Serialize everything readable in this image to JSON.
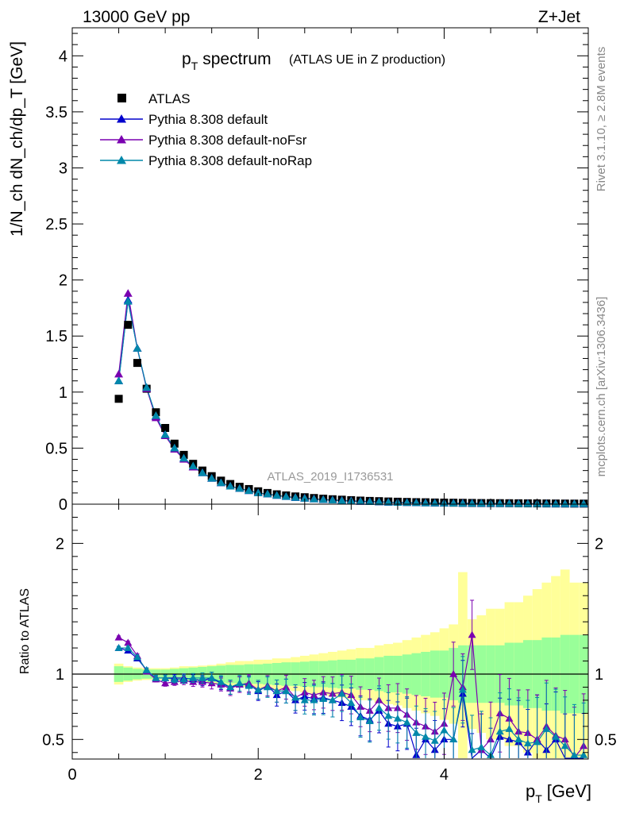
{
  "header": {
    "beam": "13000 GeV pp",
    "process": "Z+Jet"
  },
  "side_labels": {
    "rivet": "Rivet 3.1.10, ≥ 2.8M events",
    "mcplots": "mcplots.cern.ch [arXiv:1306.3436]"
  },
  "analysis_id": "ATLAS_2019_I1736531",
  "colors": {
    "atlas": "#000000",
    "default": "#0000cc",
    "noFsr": "#7a00b0",
    "noRap": "#0088aa",
    "band_inner": "#99ff99",
    "band_outer": "#ffff99"
  },
  "chart_data": [
    {
      "type": "scatter",
      "title_main": "p",
      "title_sub": "T",
      "title_rest": "spectrum",
      "title_note": "(ATLAS UE in Z production)",
      "ylabel": "1/N_ch dN_ch/dp_T [GeV]",
      "xlim": [
        0,
        5.55
      ],
      "ylim": [
        0,
        4.25
      ],
      "yticks": [
        0,
        0.5,
        1,
        1.5,
        2,
        2.5,
        3,
        3.5,
        4
      ],
      "ytick_labels": [
        "0",
        "0.5",
        "1",
        "1.5",
        "2",
        "2.5",
        "3",
        "3.5",
        "4"
      ],
      "legend_placement": "top-left",
      "x": [
        0.5,
        0.6,
        0.7,
        0.8,
        0.9,
        1.0,
        1.1,
        1.2,
        1.3,
        1.4,
        1.5,
        1.6,
        1.7,
        1.8,
        1.9,
        2.0,
        2.1,
        2.2,
        2.3,
        2.4,
        2.5,
        2.6,
        2.7,
        2.8,
        2.9,
        3.0,
        3.1,
        3.2,
        3.3,
        3.4,
        3.5,
        3.6,
        3.7,
        3.8,
        3.9,
        4.0,
        4.1,
        4.2,
        4.3,
        4.4,
        4.5,
        4.6,
        4.7,
        4.8,
        4.9,
        5.0,
        5.1,
        5.2,
        5.3,
        5.4,
        5.5
      ],
      "series": [
        {
          "name": "ATLAS",
          "marker": "square",
          "values": [
            0.94,
            1.6,
            1.26,
            1.03,
            0.82,
            0.68,
            0.54,
            0.44,
            0.36,
            0.3,
            0.25,
            0.21,
            0.18,
            0.155,
            0.135,
            0.115,
            0.1,
            0.088,
            0.078,
            0.069,
            0.062,
            0.055,
            0.049,
            0.044,
            0.04,
            0.036,
            0.032,
            0.029,
            0.027,
            0.024,
            0.022,
            0.02,
            0.018,
            0.017,
            0.015,
            0.014,
            0.013,
            0.012,
            0.011,
            0.01,
            0.0095,
            0.009,
            0.0085,
            0.008,
            0.0075,
            0.007,
            0.0065,
            0.006,
            0.0055,
            0.005,
            0.005
          ]
        },
        {
          "name": "Pythia 8.308 default",
          "marker": "triangle",
          "values": [
            1.1,
            1.82,
            1.39,
            1.04,
            0.78,
            0.62,
            0.5,
            0.41,
            0.33,
            0.28,
            0.23,
            0.19,
            0.16,
            0.14,
            0.12,
            0.1,
            0.09,
            0.078,
            0.067,
            0.058,
            0.052,
            0.046,
            0.04,
            0.036,
            0.032,
            0.028,
            0.024,
            0.022,
            0.02,
            0.017,
            0.015,
            0.014,
            0.012,
            0.011,
            0.01,
            0.009,
            0.008,
            0.0075,
            0.007,
            0.0065,
            0.006,
            0.0055,
            0.005,
            0.0045,
            0.004,
            0.004,
            0.0035,
            0.003,
            0.003,
            0.003,
            0.003
          ]
        },
        {
          "name": "Pythia 8.308 default-noFsr",
          "marker": "triangle",
          "values": [
            1.16,
            1.88,
            1.39,
            1.03,
            0.77,
            0.61,
            0.49,
            0.4,
            0.33,
            0.28,
            0.23,
            0.19,
            0.16,
            0.14,
            0.12,
            0.1,
            0.09,
            0.078,
            0.068,
            0.06,
            0.054,
            0.048,
            0.042,
            0.038,
            0.034,
            0.03,
            0.027,
            0.024,
            0.021,
            0.018,
            0.016,
            0.015,
            0.013,
            0.012,
            0.011,
            0.01,
            0.009,
            0.0085,
            0.008,
            0.0075,
            0.007,
            0.0065,
            0.006,
            0.0055,
            0.005,
            0.0045,
            0.004,
            0.0035,
            0.0035,
            0.003,
            0.003
          ]
        },
        {
          "name": "Pythia 8.308 default-noRap",
          "marker": "triangle",
          "values": [
            1.1,
            1.81,
            1.39,
            1.04,
            0.79,
            0.62,
            0.5,
            0.41,
            0.34,
            0.28,
            0.23,
            0.19,
            0.16,
            0.14,
            0.12,
            0.1,
            0.09,
            0.078,
            0.068,
            0.059,
            0.052,
            0.046,
            0.041,
            0.036,
            0.032,
            0.028,
            0.025,
            0.022,
            0.02,
            0.017,
            0.015,
            0.014,
            0.012,
            0.011,
            0.01,
            0.009,
            0.008,
            0.0075,
            0.007,
            0.0065,
            0.006,
            0.0055,
            0.005,
            0.0045,
            0.004,
            0.004,
            0.0035,
            0.003,
            0.003,
            0.003,
            0.003
          ]
        }
      ]
    },
    {
      "type": "line",
      "ylabel": "Ratio to ATLAS",
      "xlabel_main": "p",
      "xlabel_sub": "T",
      "xlabel_rest": "[GeV]",
      "xlim": [
        0,
        5.55
      ],
      "ylim": [
        0.35,
        2.3
      ],
      "xticks": [
        0,
        2,
        4
      ],
      "xtick_labels": [
        "0",
        "2",
        "4"
      ],
      "yticks": [
        0.5,
        1,
        2
      ],
      "ytick_labels": [
        "0.5",
        "1",
        "2"
      ],
      "reference_line": 1,
      "x": [
        0.5,
        0.6,
        0.7,
        0.8,
        0.9,
        1.0,
        1.1,
        1.2,
        1.3,
        1.4,
        1.5,
        1.6,
        1.7,
        1.8,
        1.9,
        2.0,
        2.1,
        2.2,
        2.3,
        2.4,
        2.5,
        2.6,
        2.7,
        2.8,
        2.9,
        3.0,
        3.1,
        3.2,
        3.3,
        3.4,
        3.5,
        3.6,
        3.7,
        3.8,
        3.9,
        4.0,
        4.1,
        4.2,
        4.3,
        4.4,
        4.5,
        4.6,
        4.7,
        4.8,
        4.9,
        5.0,
        5.1,
        5.2,
        5.3,
        5.4,
        5.5
      ],
      "band_inner": [
        0.06,
        0.05,
        0.04,
        0.035,
        0.035,
        0.035,
        0.04,
        0.045,
        0.05,
        0.055,
        0.06,
        0.065,
        0.07,
        0.07,
        0.075,
        0.075,
        0.08,
        0.085,
        0.09,
        0.09,
        0.095,
        0.1,
        0.1,
        0.105,
        0.11,
        0.11,
        0.12,
        0.12,
        0.13,
        0.14,
        0.14,
        0.15,
        0.16,
        0.17,
        0.18,
        0.18,
        0.2,
        0.22,
        0.22,
        0.22,
        0.22,
        0.22,
        0.24,
        0.24,
        0.26,
        0.26,
        0.28,
        0.28,
        0.3,
        0.3,
        0.3
      ],
      "band_outer": [
        0.08,
        0.06,
        0.05,
        0.045,
        0.045,
        0.045,
        0.05,
        0.06,
        0.06,
        0.065,
        0.07,
        0.08,
        0.09,
        0.1,
        0.1,
        0.11,
        0.11,
        0.12,
        0.12,
        0.13,
        0.14,
        0.15,
        0.16,
        0.17,
        0.18,
        0.19,
        0.2,
        0.2,
        0.22,
        0.23,
        0.24,
        0.26,
        0.28,
        0.3,
        0.32,
        0.35,
        0.38,
        0.78,
        0.42,
        0.45,
        0.5,
        0.5,
        0.55,
        0.55,
        0.6,
        0.65,
        0.7,
        0.75,
        0.8,
        0.7,
        0.7
      ],
      "series": [
        {
          "name": "Pythia 8.308 default",
          "values": [
            1.2,
            1.18,
            1.12,
            1.03,
            0.97,
            0.97,
            0.97,
            0.97,
            0.96,
            0.95,
            0.97,
            0.93,
            0.9,
            0.92,
            0.92,
            0.87,
            0.91,
            0.84,
            0.87,
            0.8,
            0.83,
            0.81,
            0.82,
            0.8,
            0.78,
            0.75,
            0.68,
            0.65,
            0.72,
            0.62,
            0.6,
            0.62,
            0.38,
            0.5,
            0.42,
            0.5,
            0.5,
            0.85,
            0.28,
            0.42,
            0.3,
            0.52,
            0.5,
            0.48,
            0.4,
            0.5,
            0.42,
            0.5,
            0.32,
            0.3,
            0.3
          ]
        },
        {
          "name": "Pythia 8.308 default-noFsr",
          "values": [
            1.28,
            1.24,
            1.14,
            1.02,
            0.96,
            0.93,
            0.94,
            0.95,
            0.94,
            0.94,
            0.93,
            0.92,
            0.89,
            0.92,
            0.93,
            0.88,
            0.91,
            0.87,
            0.9,
            0.82,
            0.86,
            0.84,
            0.86,
            0.85,
            0.86,
            0.84,
            0.75,
            0.72,
            0.8,
            0.74,
            0.74,
            0.69,
            0.63,
            0.6,
            0.56,
            0.62,
            1.0,
            0.9,
            1.3,
            0.42,
            0.5,
            0.7,
            0.66,
            0.56,
            0.55,
            0.5,
            0.6,
            0.53,
            0.5,
            0.36,
            0.45
          ]
        },
        {
          "name": "Pythia 8.308 default-noRap",
          "values": [
            1.2,
            1.2,
            1.13,
            1.03,
            0.97,
            0.97,
            0.96,
            0.96,
            0.97,
            0.97,
            0.97,
            0.94,
            0.9,
            0.93,
            0.91,
            0.88,
            0.9,
            0.87,
            0.87,
            0.82,
            0.8,
            0.8,
            0.81,
            0.8,
            0.85,
            0.78,
            0.67,
            0.64,
            0.74,
            0.68,
            0.66,
            0.63,
            0.55,
            0.52,
            0.49,
            0.57,
            0.5,
            0.88,
            0.42,
            0.44,
            0.38,
            0.56,
            0.58,
            0.5,
            0.47,
            0.48,
            0.58,
            0.52,
            0.45,
            0.38,
            0.38
          ]
        }
      ]
    }
  ]
}
